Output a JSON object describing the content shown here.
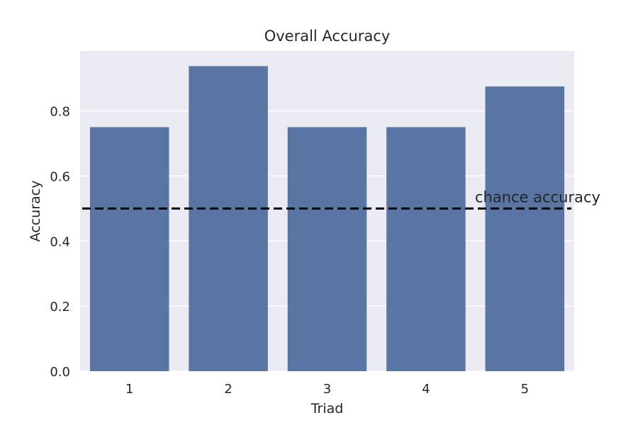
{
  "chart_data": {
    "type": "bar",
    "title": "Overall Accuracy",
    "xlabel": "Triad",
    "ylabel": "Accuracy",
    "categories": [
      "1",
      "2",
      "3",
      "4",
      "5"
    ],
    "values": [
      0.75,
      0.9375,
      0.75,
      0.75,
      0.875
    ],
    "ylim": [
      0,
      0.984
    ],
    "yticks": [
      0.0,
      0.2,
      0.4,
      0.6,
      0.8
    ],
    "ytick_labels": [
      "0.0",
      "0.2",
      "0.4",
      "0.6",
      "0.8"
    ],
    "grid": true,
    "reference_line": {
      "value": 0.5,
      "style": "dashed",
      "color": "#000000",
      "label": "chance accuracy"
    },
    "colors": {
      "bar": "#5975a4",
      "plot_background": "#eaeaf2",
      "grid": "#ffffff"
    }
  }
}
